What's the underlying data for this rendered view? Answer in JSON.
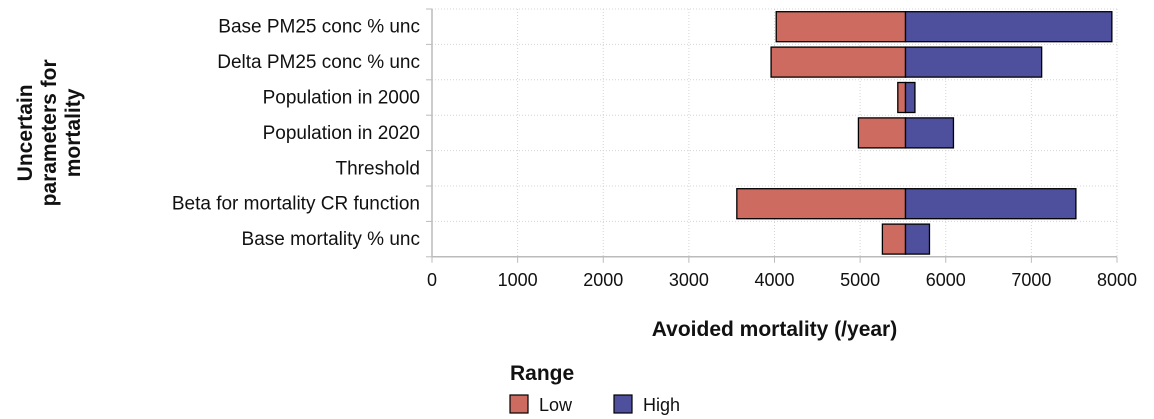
{
  "chart_data": {
    "type": "bar",
    "orientation": "horizontal",
    "style": "tornado",
    "xlabel": "Avoided mortality (/year)",
    "ylabel_lines": [
      "Uncertain",
      "parameters for",
      "mortality"
    ],
    "xlim": [
      0,
      8000
    ],
    "xticks": [
      "0",
      "1000",
      "2000",
      "3000",
      "4000",
      "5000",
      "6000",
      "7000",
      "8000"
    ],
    "xtick_values": [
      0,
      1000,
      2000,
      3000,
      4000,
      5000,
      6000,
      7000,
      8000
    ],
    "grid": true,
    "baseline": 5530,
    "categories": [
      "Base PM25 conc % unc",
      "Delta PM25 conc % unc",
      "Population in 2000",
      "Population in 2020",
      "Threshold",
      "Beta for mortality CR function",
      "Base mortality % unc"
    ],
    "series": [
      {
        "name": "Low",
        "color": "#cd6b60",
        "values": [
          4020,
          3960,
          5440,
          4980,
          5530,
          3560,
          5260
        ]
      },
      {
        "name": "High",
        "color": "#4e4f9d",
        "values": [
          7940,
          7120,
          5640,
          6090,
          5530,
          7520,
          5810
        ]
      }
    ],
    "legend": {
      "title": "Range",
      "position": "bottom",
      "items": [
        {
          "label": "Low",
          "color": "#cd6b60"
        },
        {
          "label": "High",
          "color": "#4e4f9d"
        }
      ]
    }
  }
}
